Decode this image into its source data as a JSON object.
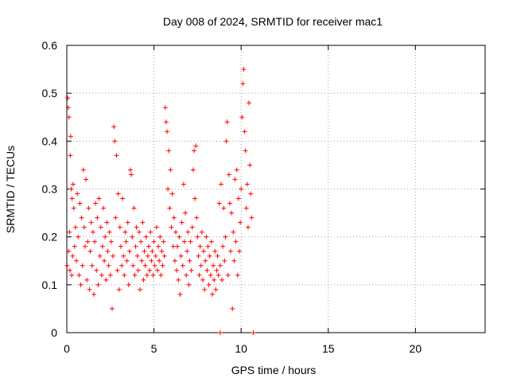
{
  "chart_data": {
    "type": "scatter",
    "title": "Day 008 of 2024, SRMTID for receiver mac1",
    "xlabel": "GPS time / hours",
    "ylabel": "SRMTID / TECUs",
    "xlim": [
      0,
      24
    ],
    "ylim": [
      0,
      0.6
    ],
    "xticks": [
      0,
      5,
      10,
      15,
      20
    ],
    "yticks": [
      0,
      0.1,
      0.2,
      0.3,
      0.4,
      0.5,
      0.6
    ],
    "xtick_labels": [
      "0",
      "5",
      "10",
      "15",
      "20"
    ],
    "ytick_labels": [
      "0",
      "0.1",
      "0.2",
      "0.3",
      "0.4",
      "0.5",
      "0.6"
    ],
    "grid": true,
    "marker": "+",
    "series": [
      {
        "color": "#ff0000",
        "x": [
          0.02,
          0.05,
          0.08,
          0.1,
          0.12,
          0.15,
          0.18,
          0.2,
          0.22,
          0.25,
          0.28,
          0.3,
          0.33,
          0.36,
          0.4,
          0.45,
          0.5,
          0.55,
          0.6,
          0.65,
          0.7,
          0.75,
          0.8,
          0.85,
          0.9,
          0.95,
          1.0,
          1.05,
          1.1,
          1.15,
          1.2,
          1.25,
          1.3,
          1.35,
          1.4,
          1.45,
          1.5,
          1.55,
          1.6,
          1.65,
          1.7,
          1.75,
          1.8,
          1.85,
          1.9,
          1.95,
          2.0,
          2.05,
          2.1,
          2.15,
          2.2,
          2.25,
          2.3,
          2.35,
          2.4,
          2.45,
          2.5,
          2.55,
          2.6,
          2.65,
          2.7,
          2.75,
          2.8,
          2.85,
          2.9,
          2.95,
          3.0,
          3.05,
          3.1,
          3.15,
          3.2,
          3.25,
          3.3,
          3.35,
          3.4,
          3.45,
          3.5,
          3.55,
          3.6,
          3.65,
          3.7,
          3.75,
          3.8,
          3.85,
          3.9,
          3.95,
          4.0,
          4.05,
          4.1,
          4.15,
          4.2,
          4.25,
          4.3,
          4.35,
          4.4,
          4.45,
          4.5,
          4.55,
          4.6,
          4.65,
          4.7,
          4.75,
          4.8,
          4.85,
          4.9,
          4.95,
          5.0,
          5.05,
          5.1,
          5.15,
          5.2,
          5.25,
          5.3,
          5.35,
          5.4,
          5.45,
          5.5,
          5.55,
          5.6,
          5.65,
          5.7,
          5.75,
          5.8,
          5.85,
          5.9,
          5.95,
          6.0,
          6.05,
          6.1,
          6.15,
          6.2,
          6.25,
          6.3,
          6.35,
          6.4,
          6.45,
          6.5,
          6.55,
          6.6,
          6.65,
          6.7,
          6.75,
          6.8,
          6.85,
          6.9,
          6.95,
          7.0,
          7.05,
          7.1,
          7.15,
          7.2,
          7.25,
          7.3,
          7.35,
          7.4,
          7.45,
          7.5,
          7.55,
          7.6,
          7.65,
          7.7,
          7.75,
          7.8,
          7.85,
          7.9,
          7.95,
          8.0,
          8.05,
          8.1,
          8.15,
          8.2,
          8.25,
          8.3,
          8.35,
          8.4,
          8.45,
          8.5,
          8.55,
          8.6,
          8.65,
          8.7,
          8.75,
          8.8,
          8.85,
          8.9,
          8.95,
          9.0,
          9.05,
          9.1,
          9.15,
          9.2,
          9.25,
          9.3,
          9.35,
          9.4,
          9.45,
          9.5,
          9.55,
          9.6,
          9.65,
          9.7,
          9.75,
          9.8,
          9.85,
          9.9,
          9.95,
          10.0,
          10.05,
          10.1,
          10.15,
          10.2,
          10.25,
          10.3,
          10.35,
          10.4,
          10.45,
          10.5,
          10.55,
          10.6,
          8.8,
          10.7
        ],
        "y": [
          0.14,
          0.49,
          0.47,
          0.17,
          0.45,
          0.21,
          0.13,
          0.37,
          0.41,
          0.3,
          0.12,
          0.28,
          0.16,
          0.31,
          0.26,
          0.18,
          0.22,
          0.15,
          0.29,
          0.2,
          0.12,
          0.27,
          0.1,
          0.24,
          0.14,
          0.34,
          0.22,
          0.18,
          0.32,
          0.11,
          0.19,
          0.26,
          0.09,
          0.17,
          0.23,
          0.14,
          0.21,
          0.08,
          0.19,
          0.27,
          0.13,
          0.24,
          0.1,
          0.28,
          0.16,
          0.22,
          0.12,
          0.18,
          0.26,
          0.15,
          0.2,
          0.11,
          0.23,
          0.17,
          0.14,
          0.21,
          0.12,
          0.19,
          0.05,
          0.16,
          0.43,
          0.4,
          0.24,
          0.37,
          0.13,
          0.29,
          0.09,
          0.22,
          0.18,
          0.14,
          0.28,
          0.16,
          0.12,
          0.21,
          0.19,
          0.15,
          0.23,
          0.1,
          0.17,
          0.34,
          0.33,
          0.2,
          0.14,
          0.26,
          0.12,
          0.18,
          0.22,
          0.16,
          0.13,
          0.21,
          0.09,
          0.19,
          0.15,
          0.23,
          0.11,
          0.17,
          0.14,
          0.2,
          0.12,
          0.16,
          0.18,
          0.13,
          0.21,
          0.15,
          0.17,
          0.12,
          0.19,
          0.14,
          0.16,
          0.22,
          0.13,
          0.18,
          0.15,
          0.2,
          0.12,
          0.17,
          0.14,
          0.19,
          0.16,
          0.47,
          0.44,
          0.42,
          0.3,
          0.38,
          0.26,
          0.34,
          0.22,
          0.29,
          0.18,
          0.24,
          0.15,
          0.21,
          0.13,
          0.18,
          0.11,
          0.2,
          0.08,
          0.16,
          0.23,
          0.14,
          0.31,
          0.19,
          0.25,
          0.12,
          0.17,
          0.21,
          0.1,
          0.15,
          0.19,
          0.13,
          0.22,
          0.34,
          0.38,
          0.28,
          0.39,
          0.24,
          0.2,
          0.16,
          0.12,
          0.18,
          0.14,
          0.21,
          0.11,
          0.17,
          0.09,
          0.15,
          0.2,
          0.13,
          0.18,
          0.1,
          0.16,
          0.12,
          0.19,
          0.08,
          0.14,
          0.11,
          0.17,
          0.09,
          0.13,
          0.16,
          0.12,
          0.27,
          0.14,
          0.31,
          0.11,
          0.18,
          0.26,
          0.15,
          0.2,
          0.4,
          0.44,
          0.12,
          0.33,
          0.27,
          0.17,
          0.25,
          0.05,
          0.21,
          0.15,
          0.32,
          0.19,
          0.34,
          0.12,
          0.28,
          0.17,
          0.23,
          0.3,
          0.45,
          0.52,
          0.55,
          0.42,
          0.38,
          0.26,
          0.31,
          0.22,
          0.48,
          0.35,
          0.29,
          0.24,
          0.0,
          0.0
        ]
      }
    ]
  }
}
